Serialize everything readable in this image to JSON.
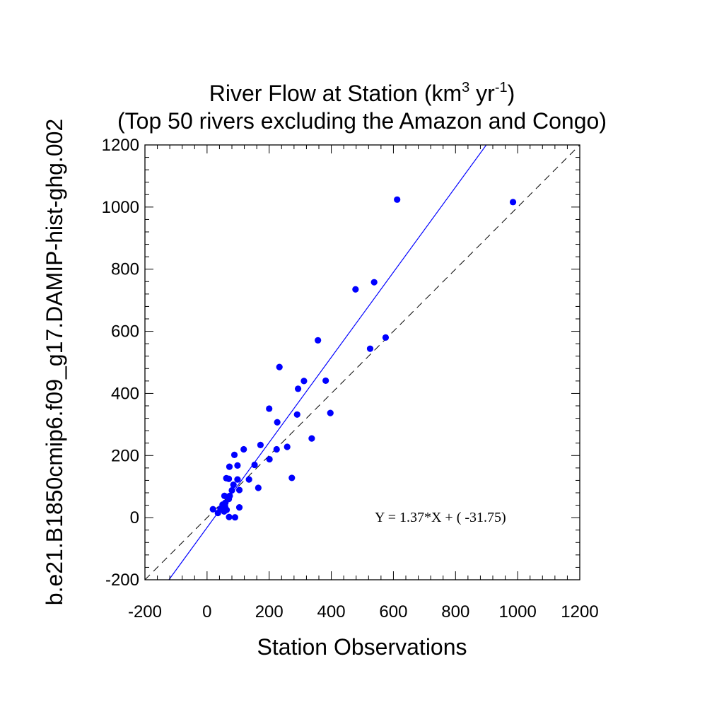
{
  "chart_data": {
    "type": "scatter",
    "title": {
      "line1_main": "River Flow at Station (km",
      "line1_sup1": "3",
      "line1_mid": " yr",
      "line1_sup2": "-1",
      "line1_end": ")",
      "line2": "(Top 50 rivers excluding the Amazon and Congo)"
    },
    "xlabel": "Station Observations",
    "ylabel": "b.e21.B1850cmip6.f09_g17.DAMIP-hist-ghg.002",
    "xlim": [
      -200,
      1200
    ],
    "ylim": [
      -200,
      1200
    ],
    "ticks": [
      -200,
      0,
      200,
      400,
      600,
      800,
      1000,
      1200
    ],
    "tick_labels": [
      "-200",
      "0",
      "200",
      "400",
      "600",
      "800",
      "1000",
      "1200"
    ],
    "point_color": "#0000ff",
    "fit_color": "#0000ff",
    "fit": {
      "slope": 1.37,
      "intercept": -31.75
    },
    "equation_text": "Y =  1.37*X + (  -31.75)",
    "one_to_one_line": true,
    "points": [
      [
        612,
        1024
      ],
      [
        985,
        1016
      ],
      [
        538,
        758
      ],
      [
        478,
        735
      ],
      [
        575,
        580
      ],
      [
        357,
        571
      ],
      [
        525,
        544
      ],
      [
        233,
        485
      ],
      [
        312,
        440
      ],
      [
        382,
        441
      ],
      [
        293,
        415
      ],
      [
        200,
        351
      ],
      [
        397,
        337
      ],
      [
        290,
        332
      ],
      [
        226,
        307
      ],
      [
        337,
        255
      ],
      [
        172,
        234
      ],
      [
        258,
        228
      ],
      [
        118,
        220
      ],
      [
        224,
        220
      ],
      [
        88,
        202
      ],
      [
        201,
        188
      ],
      [
        153,
        170
      ],
      [
        98,
        168
      ],
      [
        72,
        164
      ],
      [
        273,
        128
      ],
      [
        62,
        127
      ],
      [
        70,
        125
      ],
      [
        98,
        123
      ],
      [
        135,
        123
      ],
      [
        85,
        106
      ],
      [
        165,
        96
      ],
      [
        104,
        89
      ],
      [
        80,
        88
      ],
      [
        56,
        70
      ],
      [
        73,
        70
      ],
      [
        70,
        60
      ],
      [
        59,
        48
      ],
      [
        50,
        42
      ],
      [
        19,
        27
      ],
      [
        58,
        36
      ],
      [
        63,
        25
      ],
      [
        43,
        29
      ],
      [
        35,
        15
      ],
      [
        55,
        20
      ],
      [
        104,
        33
      ],
      [
        71,
        2
      ],
      [
        90,
        1
      ]
    ]
  }
}
